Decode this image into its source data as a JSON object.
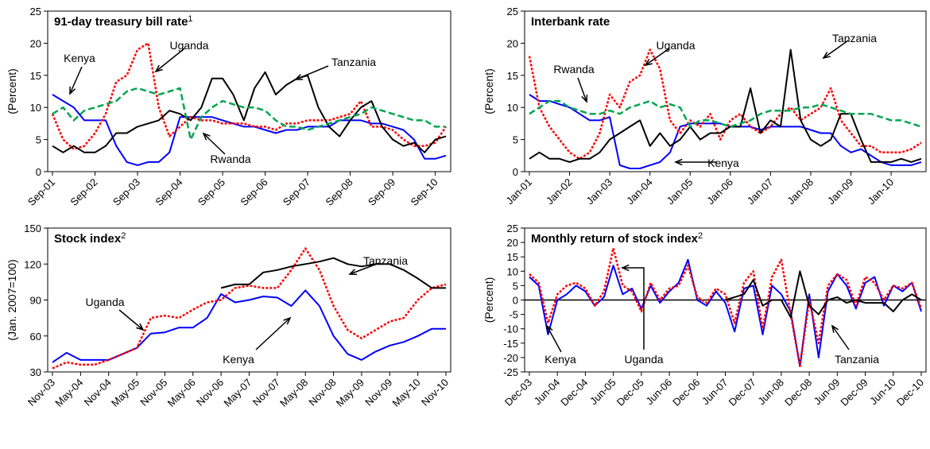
{
  "chart_data": [
    {
      "type": "line",
      "title": "91-day treasury bill rate",
      "title_sup": "1",
      "y_label": "(Percent)",
      "categories": [
        "Sep-01",
        null,
        null,
        null,
        "Sep-02",
        null,
        null,
        null,
        "Sep-03",
        null,
        null,
        null,
        "Sep-04",
        null,
        null,
        null,
        "Sep-05",
        null,
        null,
        null,
        "Sep-06",
        null,
        null,
        null,
        "Sep-07",
        null,
        null,
        null,
        "Sep-08",
        null,
        null,
        null,
        "Sep-09",
        null,
        null,
        null,
        "Sep-10",
        null
      ],
      "ylim": [
        0,
        25
      ],
      "yticks": [
        0,
        5,
        10,
        15,
        20,
        25
      ],
      "series": [
        {
          "name": "Kenya",
          "color": "#0000ff",
          "dash": "solid",
          "values": [
            12,
            11,
            10,
            8,
            8,
            8,
            4,
            1.5,
            1,
            1.5,
            1.5,
            3,
            8.5,
            8.5,
            8.5,
            8.5,
            8,
            7.5,
            7,
            7,
            6.5,
            6,
            6.5,
            6.5,
            7,
            7,
            7,
            8,
            8,
            8,
            7.5,
            7.5,
            7,
            6.5,
            5,
            2,
            2,
            2.5
          ]
        },
        {
          "name": "Uganda",
          "color": "#ff0000",
          "dash": "dotted",
          "values": [
            9,
            5,
            3.5,
            4,
            6,
            9,
            14,
            15,
            19,
            20,
            10,
            5.5,
            7,
            8.5,
            8,
            8,
            7.5,
            7.5,
            7.5,
            7,
            7,
            6.5,
            7.5,
            7.5,
            8,
            8,
            8,
            8.5,
            9,
            11,
            7,
            7,
            6.5,
            5,
            4,
            4,
            4.5,
            7
          ]
        },
        {
          "name": "Tanzania",
          "color": "#000000",
          "dash": "solid",
          "values": [
            4,
            3,
            4,
            3,
            3,
            4,
            6,
            6,
            7,
            7.5,
            8,
            9.5,
            9,
            8,
            10,
            14.5,
            14.5,
            12,
            8,
            13,
            15.5,
            12,
            13.5,
            14.5,
            15,
            10,
            7,
            5.5,
            8,
            10,
            11,
            7,
            5,
            4,
            4.5,
            3,
            5,
            5.5
          ]
        },
        {
          "name": "Rwanda",
          "color": "#00a650",
          "dash": "dashed",
          "values": [
            9,
            10,
            8,
            9.5,
            10,
            10.5,
            11,
            12.5,
            13,
            12.5,
            12,
            12.5,
            13,
            5,
            8.5,
            10,
            11,
            10.5,
            10,
            10,
            9.5,
            8,
            7,
            7,
            6.5,
            7,
            7.5,
            8,
            8.5,
            9,
            10,
            9.5,
            9,
            8.5,
            8,
            8,
            7,
            7
          ]
        }
      ]
    },
    {
      "type": "line",
      "title": "Interbank rate",
      "y_label": "(Percent)",
      "categories": [
        "Jan-01",
        null,
        null,
        null,
        "Jan-02",
        null,
        null,
        null,
        "Jan-03",
        null,
        null,
        null,
        "Jan-04",
        null,
        null,
        null,
        "Jan-05",
        null,
        null,
        null,
        "Jan-06",
        null,
        null,
        null,
        "Jan-07",
        null,
        null,
        null,
        "Jan-08",
        null,
        null,
        null,
        "Jan-09",
        null,
        null,
        null,
        "Jan-10",
        null,
        null,
        null
      ],
      "ylim": [
        0,
        25
      ],
      "yticks": [
        0,
        5,
        10,
        15,
        20,
        25
      ],
      "series": [
        {
          "name": "Kenya",
          "color": "#0000ff",
          "dash": "solid",
          "values": [
            12,
            11,
            11,
            10.5,
            10,
            9,
            8,
            8,
            8.5,
            1,
            0.5,
            0.5,
            1,
            1.5,
            3,
            7,
            7.5,
            7.5,
            7.5,
            7.5,
            7,
            7,
            7,
            6.5,
            7,
            7,
            7,
            7,
            6.5,
            6,
            6,
            4,
            3,
            3.5,
            2.5,
            1.5,
            1,
            1,
            1,
            1.5
          ]
        },
        {
          "name": "Uganda",
          "color": "#ff0000",
          "dash": "dotted",
          "values": [
            18,
            10,
            7,
            5,
            3,
            2,
            3,
            6,
            12,
            10,
            14,
            15,
            19,
            16,
            8,
            6,
            8,
            7,
            9,
            5,
            8,
            9,
            7,
            6,
            7,
            9,
            10,
            8,
            9,
            10,
            13,
            8,
            6,
            4,
            4,
            3,
            3,
            3,
            3.5,
            4.5
          ]
        },
        {
          "name": "Tanzania",
          "color": "#000000",
          "dash": "solid",
          "values": [
            2,
            3,
            2,
            2,
            1.5,
            2,
            2,
            3,
            5,
            6,
            7,
            8,
            4,
            6,
            4,
            5,
            7,
            5,
            6,
            6,
            7,
            7,
            13,
            6,
            8,
            7,
            19,
            8,
            5,
            4,
            5,
            9,
            9,
            5,
            1.5,
            1.5,
            1.5,
            2,
            1.5,
            2
          ]
        },
        {
          "name": "Rwanda",
          "color": "#00a650",
          "dash": "dashed",
          "values": [
            9,
            10,
            11,
            11,
            10,
            9.5,
            9,
            9,
            9.5,
            9,
            10,
            10.5,
            11,
            10,
            10.5,
            10,
            7,
            8,
            8,
            7.5,
            7,
            7.5,
            8,
            9,
            9.5,
            9.5,
            9.5,
            10,
            10,
            10.5,
            10,
            9.5,
            9,
            9,
            9,
            8.5,
            8,
            8,
            7.5,
            7
          ]
        }
      ]
    },
    {
      "type": "line",
      "title": "Stock index",
      "title_sup": "2",
      "y_label": "(Jan. 2007=100)",
      "categories": [
        "Nov-03",
        null,
        "May-04",
        null,
        "Nov-04",
        null,
        "May-05",
        null,
        "Nov-05",
        null,
        "May-06",
        null,
        "Nov-06",
        null,
        "May-07",
        null,
        "Nov-07",
        null,
        "May-08",
        null,
        "Nov-08",
        null,
        "May-09",
        null,
        "Nov-09",
        null,
        "May-10",
        null,
        "Nov-10"
      ],
      "ylim": [
        30,
        150
      ],
      "yticks": [
        30,
        60,
        90,
        120,
        150
      ],
      "series": [
        {
          "name": "Kenya",
          "color": "#0000ff",
          "dash": "solid",
          "values": [
            38,
            46,
            40,
            40,
            40,
            45,
            50,
            62,
            63,
            67,
            67,
            75,
            95,
            88,
            90,
            93,
            92,
            85,
            98,
            85,
            60,
            45,
            40,
            47,
            52,
            55,
            60,
            66,
            66
          ]
        },
        {
          "name": "Uganda",
          "color": "#ff0000",
          "dash": "dotted",
          "values": [
            33,
            38,
            36,
            36,
            40,
            45,
            50,
            75,
            77,
            75,
            82,
            88,
            90,
            100,
            102,
            100,
            100,
            115,
            133,
            115,
            85,
            65,
            58,
            65,
            72,
            75,
            90,
            100,
            103
          ]
        },
        {
          "name": "Tanzania",
          "color": "#000000",
          "dash": "solid",
          "values": [
            null,
            null,
            null,
            null,
            null,
            null,
            null,
            null,
            null,
            null,
            null,
            null,
            100,
            103,
            103,
            113,
            115,
            118,
            120,
            122,
            125,
            120,
            118,
            120,
            120,
            115,
            108,
            100,
            100
          ]
        }
      ]
    },
    {
      "type": "line",
      "title": "Monthly return of stock index",
      "title_sup": "2",
      "y_label": "(Percent)",
      "categories": [
        "Dec-03",
        null,
        null,
        "Jun-04",
        null,
        null,
        "Dec-04",
        null,
        null,
        "Jun-05",
        null,
        null,
        "Dec-05",
        null,
        null,
        "Jun-06",
        null,
        null,
        "Dec-06",
        null,
        null,
        "Jun-07",
        null,
        null,
        "Dec-07",
        null,
        null,
        "Jun-08",
        null,
        null,
        "Dec-08",
        null,
        null,
        "Jun-09",
        null,
        null,
        "Dec-09",
        null,
        null,
        "Jun-10",
        null,
        null,
        "Dec-10"
      ],
      "ylim": [
        -25,
        25
      ],
      "yticks": [
        -25,
        -20,
        -15,
        -10,
        -5,
        0,
        5,
        10,
        15,
        20,
        25
      ],
      "series": [
        {
          "name": "Kenya",
          "color": "#0000ff",
          "dash": "solid",
          "values": [
            8,
            5,
            -12,
            0,
            2,
            5,
            3,
            -2,
            1,
            12,
            2,
            4,
            -3,
            5,
            -1,
            3,
            6,
            14,
            0,
            -2,
            3,
            -1,
            -11,
            4,
            5,
            -12,
            5,
            2,
            -4,
            -23,
            2,
            -20,
            3,
            9,
            5,
            -3,
            6,
            8,
            -2,
            5,
            3,
            6,
            -4
          ]
        },
        {
          "name": "Uganda",
          "color": "#ff0000",
          "dash": "dotted",
          "values": [
            9,
            6,
            -8,
            2,
            5,
            6,
            4,
            -2,
            3,
            18,
            5,
            3,
            -4,
            6,
            0,
            4,
            5,
            12,
            1,
            -1,
            4,
            2,
            -8,
            6,
            10,
            -10,
            8,
            14,
            -5,
            -23,
            0,
            -15,
            5,
            9,
            7,
            -2,
            8,
            6,
            0,
            5,
            4,
            6,
            -3
          ]
        },
        {
          "name": "Tanzania",
          "color": "#000000",
          "dash": "solid",
          "values": [
            null,
            null,
            null,
            null,
            null,
            null,
            null,
            null,
            null,
            null,
            null,
            null,
            null,
            null,
            null,
            null,
            null,
            null,
            null,
            null,
            null,
            0,
            1,
            2,
            7,
            -2,
            0,
            0,
            -6,
            10,
            -2,
            -5,
            0,
            1,
            -1,
            0,
            -1,
            -1,
            -1,
            -4,
            0,
            2,
            0
          ]
        }
      ]
    }
  ]
}
